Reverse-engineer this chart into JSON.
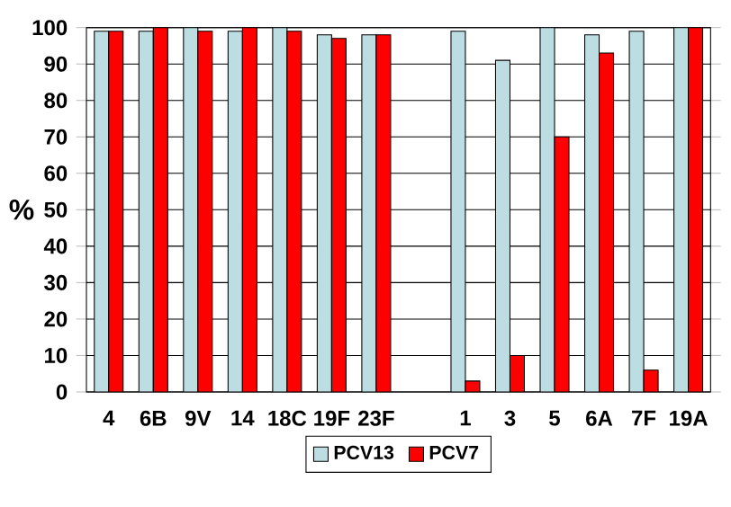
{
  "chart_data": {
    "type": "bar",
    "ylabel": "%",
    "categories": [
      "4",
      "6B",
      "9V",
      "14",
      "18C",
      "19F",
      "23F",
      null,
      "1",
      "3",
      "5",
      "6A",
      "7F",
      "19A"
    ],
    "series": [
      {
        "name": "PCV13",
        "color": "#bcdde1",
        "values": [
          99,
          99,
          100,
          99,
          100,
          98,
          98,
          null,
          99,
          91,
          100,
          98,
          99,
          100
        ]
      },
      {
        "name": "PCV7",
        "color": "#ff0000",
        "values": [
          99,
          100,
          99,
          100,
          99,
          97,
          98,
          null,
          3,
          10,
          70,
          93,
          6,
          100
        ]
      }
    ],
    "ylim": [
      0,
      100
    ],
    "yticks": [
      0,
      10,
      20,
      30,
      40,
      50,
      60,
      70,
      80,
      90,
      100
    ],
    "grid": "y",
    "legend": "bottom"
  }
}
